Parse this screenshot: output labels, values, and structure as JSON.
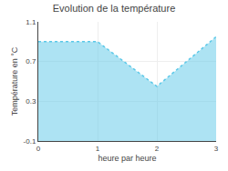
{
  "chart_data": {
    "type": "area",
    "title": "Evolution de la température",
    "xlabel": "heure par heure",
    "ylabel": "Température en °C",
    "x": [
      0,
      1,
      2,
      3
    ],
    "values": [
      0.9,
      0.9,
      0.45,
      0.95
    ],
    "color": "#5bc8e8",
    "line_style": "dotted",
    "xlim": [
      0,
      3
    ],
    "ylim": [
      -0.1,
      1.1
    ],
    "xticks": [
      0,
      1,
      2,
      3
    ],
    "yticks": [
      -0.1,
      0.3,
      0.7,
      1.1
    ],
    "grid": true
  }
}
